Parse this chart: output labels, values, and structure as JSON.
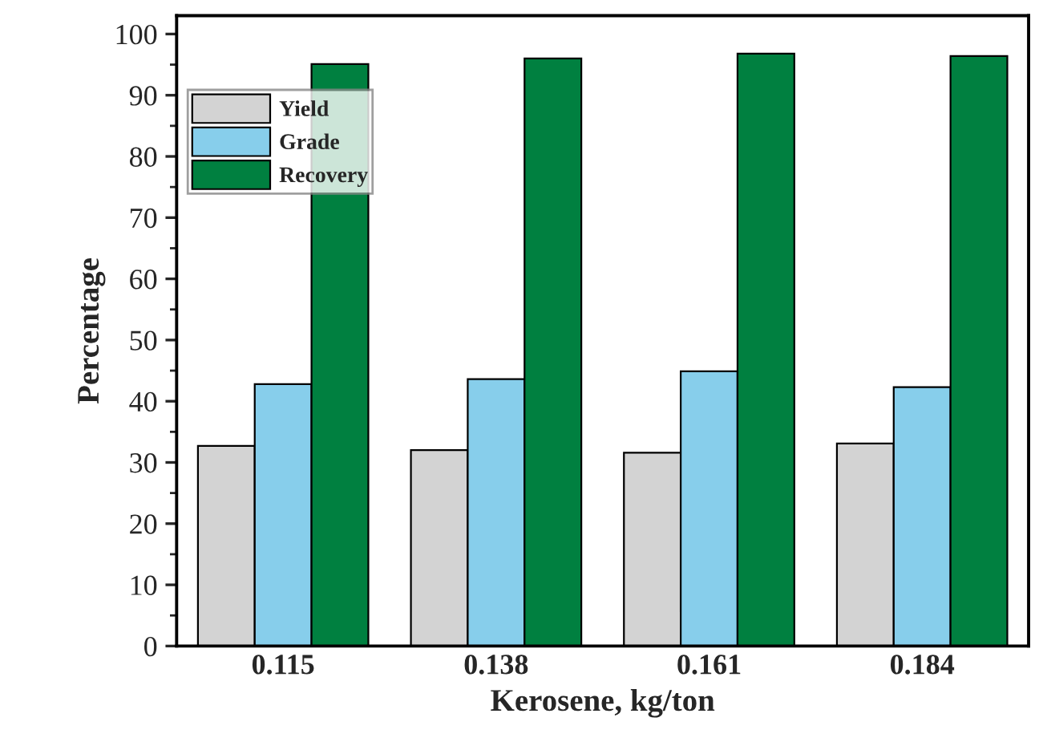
{
  "chart_data": {
    "type": "bar",
    "xlabel": "Kerosene, kg/ton",
    "ylabel": "Percentage",
    "categories": [
      "0.115",
      "0.138",
      "0.161",
      "0.184"
    ],
    "series": [
      {
        "name": "Yield",
        "color": "#d3d3d3",
        "values": [
          32.7,
          32.0,
          31.6,
          33.1
        ]
      },
      {
        "name": "Grade",
        "color": "#87ceeb",
        "values": [
          42.8,
          43.6,
          44.9,
          42.3
        ]
      },
      {
        "name": "Recovery",
        "color": "#008040",
        "values": [
          95.1,
          96.0,
          96.8,
          96.4
        ]
      }
    ],
    "ylim": [
      0,
      103
    ],
    "yticks": [
      0,
      10,
      20,
      30,
      40,
      50,
      60,
      70,
      80,
      90,
      100
    ],
    "grid": false,
    "legend": "top left"
  }
}
